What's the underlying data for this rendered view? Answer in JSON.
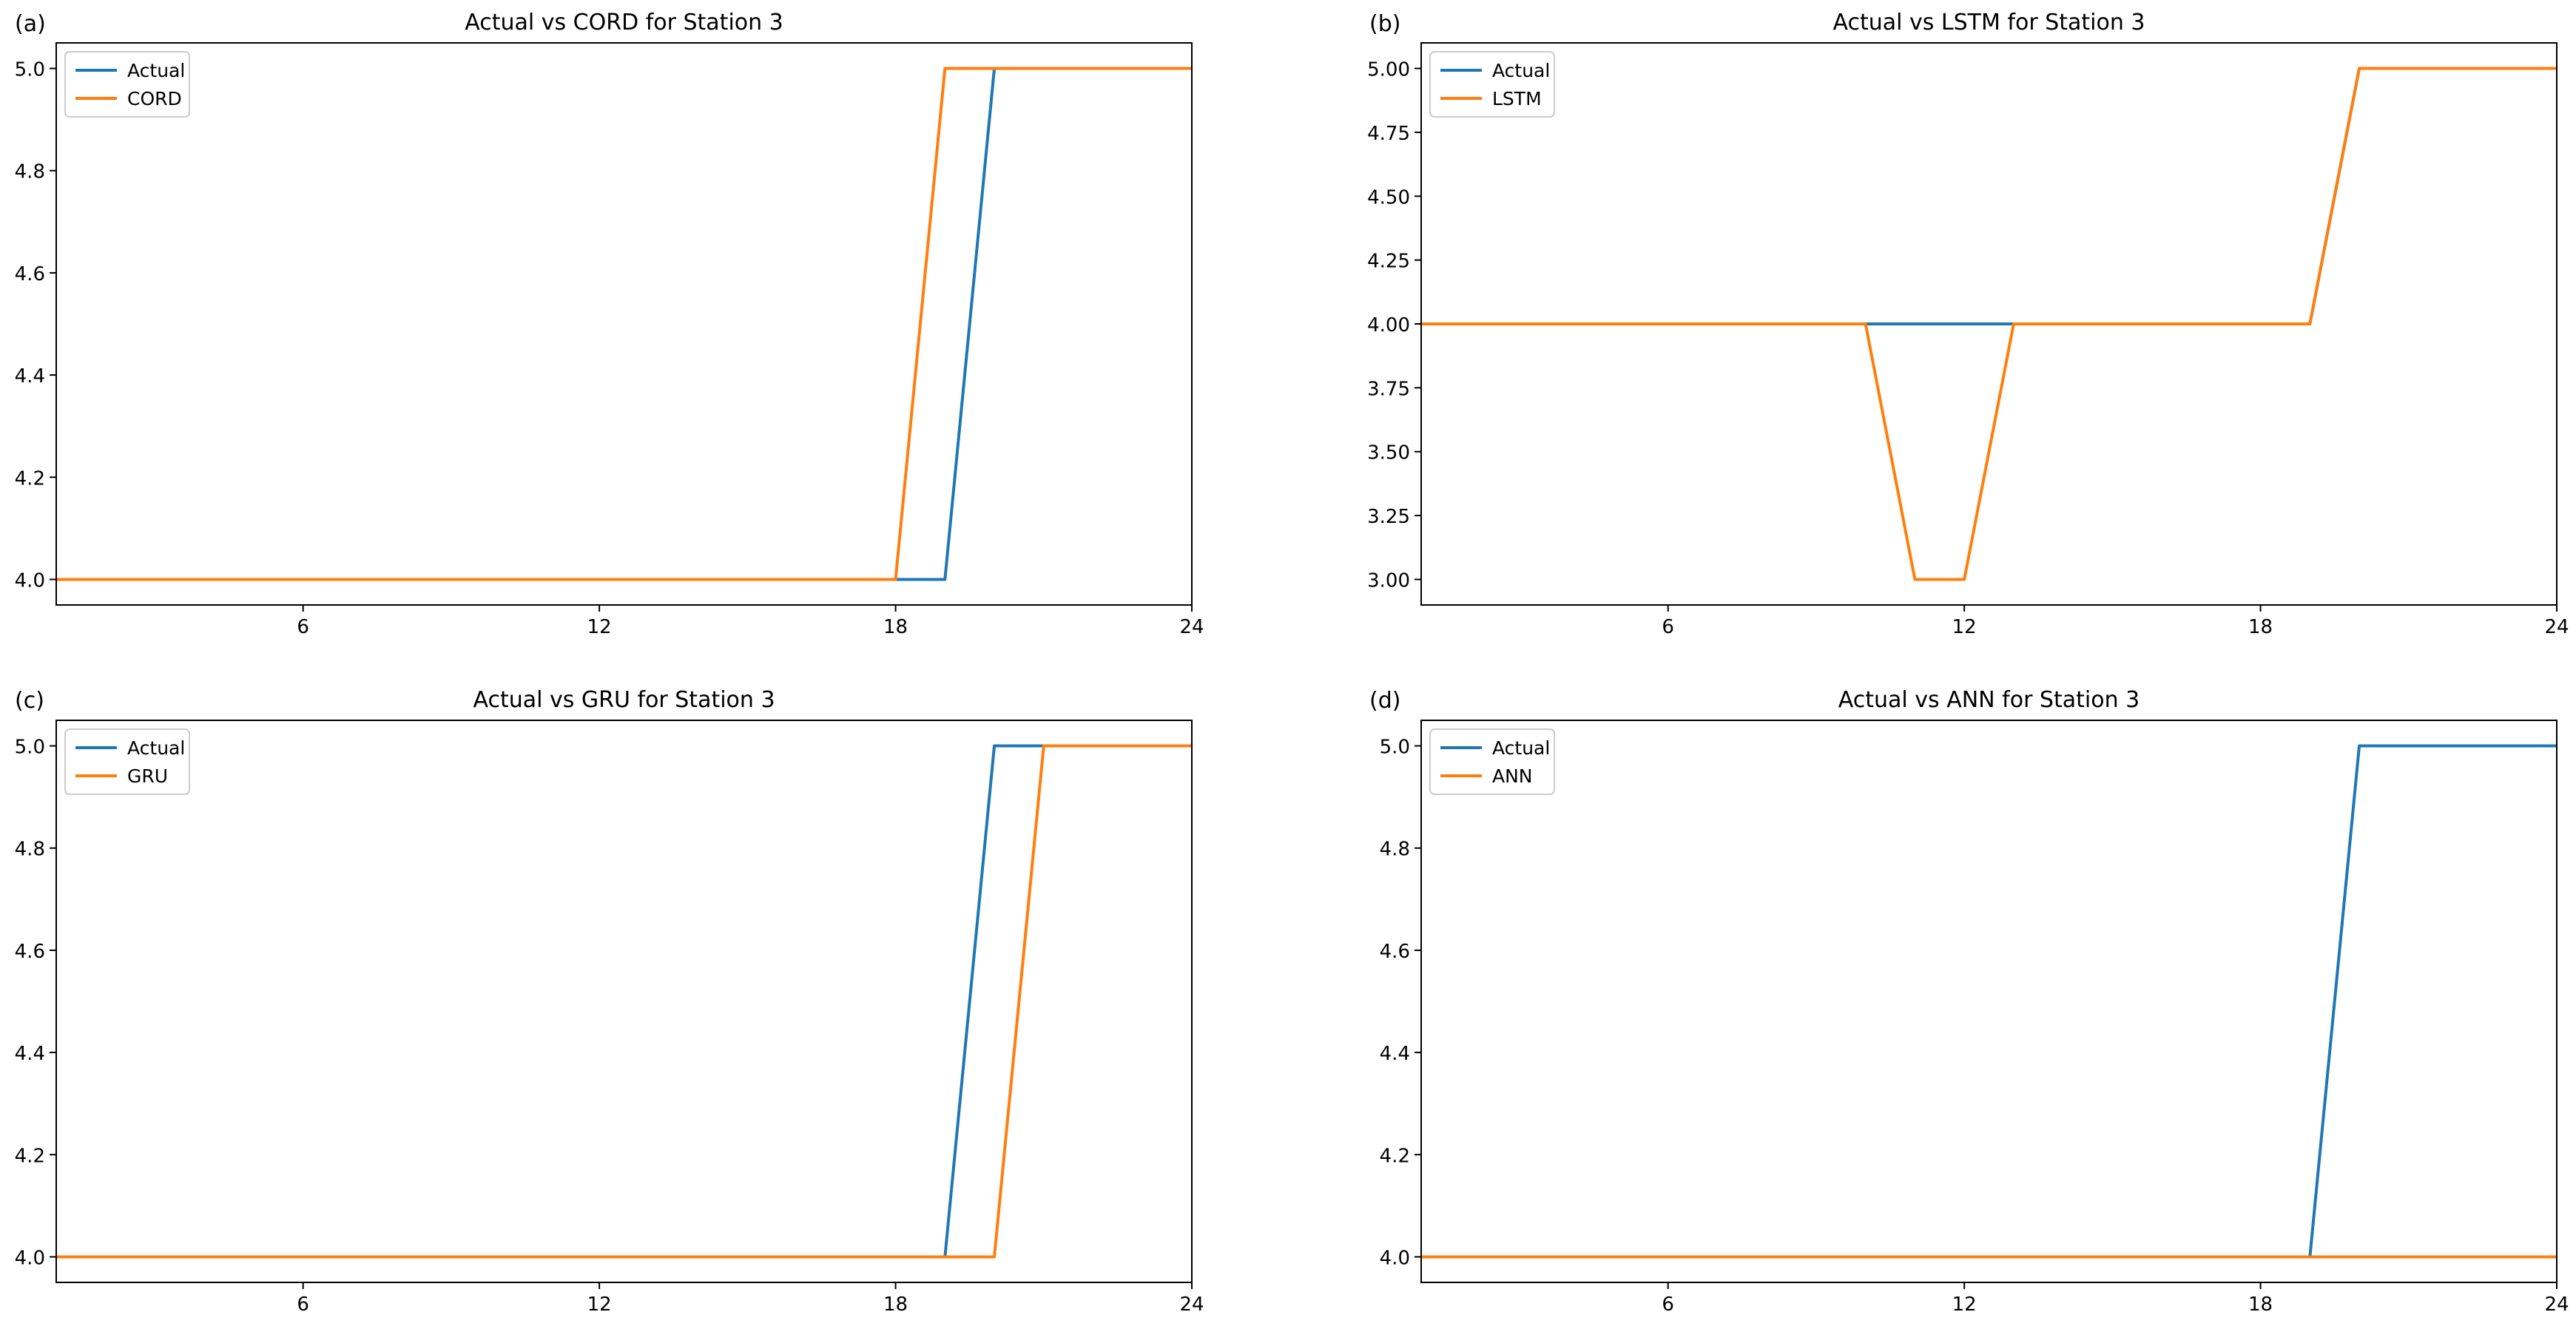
{
  "colors": {
    "actual": "#1f77b4",
    "model": "#ff7f0e",
    "axis": "#000000",
    "background": "#ffffff"
  },
  "chart_data": [
    {
      "panel": "(a)",
      "type": "line",
      "title": "Actual vs CORD for Station 3",
      "xlabel": "",
      "ylabel": "",
      "xlim": [
        1,
        24
      ],
      "ylim": [
        3.95,
        5.05
      ],
      "xticks": [
        6,
        12,
        18,
        24
      ],
      "yticks": [
        4.0,
        4.2,
        4.4,
        4.6,
        4.8,
        5.0
      ],
      "ytick_decimals": 1,
      "grid": false,
      "legend_position": "top-left",
      "x": [
        1,
        2,
        3,
        4,
        5,
        6,
        7,
        8,
        9,
        10,
        11,
        12,
        13,
        14,
        15,
        16,
        17,
        18,
        19,
        20,
        21,
        22,
        23,
        24
      ],
      "series": [
        {
          "name": "Actual",
          "color": "#1f77b4",
          "values": [
            4,
            4,
            4,
            4,
            4,
            4,
            4,
            4,
            4,
            4,
            4,
            4,
            4,
            4,
            4,
            4,
            4,
            4,
            4,
            5,
            5,
            5,
            5,
            5
          ]
        },
        {
          "name": "CORD",
          "color": "#ff7f0e",
          "values": [
            4,
            4,
            4,
            4,
            4,
            4,
            4,
            4,
            4,
            4,
            4,
            4,
            4,
            4,
            4,
            4,
            4,
            4,
            5,
            5,
            5,
            5,
            5,
            5
          ]
        }
      ]
    },
    {
      "panel": "(b)",
      "type": "line",
      "title": "Actual vs LSTM for Station 3",
      "xlabel": "",
      "ylabel": "",
      "xlim": [
        1,
        24
      ],
      "ylim": [
        2.9,
        5.1
      ],
      "xticks": [
        6,
        12,
        18,
        24
      ],
      "yticks": [
        3.0,
        3.25,
        3.5,
        3.75,
        4.0,
        4.25,
        4.5,
        4.75,
        5.0
      ],
      "ytick_decimals": 2,
      "grid": false,
      "legend_position": "top-left",
      "x": [
        1,
        2,
        3,
        4,
        5,
        6,
        7,
        8,
        9,
        10,
        11,
        12,
        13,
        14,
        15,
        16,
        17,
        18,
        19,
        20,
        21,
        22,
        23,
        24
      ],
      "series": [
        {
          "name": "Actual",
          "color": "#1f77b4",
          "values": [
            4,
            4,
            4,
            4,
            4,
            4,
            4,
            4,
            4,
            4,
            4,
            4,
            4,
            4,
            4,
            4,
            4,
            4,
            4,
            5,
            5,
            5,
            5,
            5
          ]
        },
        {
          "name": "LSTM",
          "color": "#ff7f0e",
          "values": [
            4,
            4,
            4,
            4,
            4,
            4,
            4,
            4,
            4,
            4,
            3,
            3,
            4,
            4,
            4,
            4,
            4,
            4,
            4,
            5,
            5,
            5,
            5,
            5
          ]
        }
      ]
    },
    {
      "panel": "(c)",
      "type": "line",
      "title": "Actual vs GRU for Station 3",
      "xlabel": "",
      "ylabel": "",
      "xlim": [
        1,
        24
      ],
      "ylim": [
        3.95,
        5.05
      ],
      "xticks": [
        6,
        12,
        18,
        24
      ],
      "yticks": [
        4.0,
        4.2,
        4.4,
        4.6,
        4.8,
        5.0
      ],
      "ytick_decimals": 1,
      "grid": false,
      "legend_position": "top-left",
      "x": [
        1,
        2,
        3,
        4,
        5,
        6,
        7,
        8,
        9,
        10,
        11,
        12,
        13,
        14,
        15,
        16,
        17,
        18,
        19,
        20,
        21,
        22,
        23,
        24
      ],
      "series": [
        {
          "name": "Actual",
          "color": "#1f77b4",
          "values": [
            4,
            4,
            4,
            4,
            4,
            4,
            4,
            4,
            4,
            4,
            4,
            4,
            4,
            4,
            4,
            4,
            4,
            4,
            4,
            5,
            5,
            5,
            5,
            5
          ]
        },
        {
          "name": "GRU",
          "color": "#ff7f0e",
          "values": [
            4,
            4,
            4,
            4,
            4,
            4,
            4,
            4,
            4,
            4,
            4,
            4,
            4,
            4,
            4,
            4,
            4,
            4,
            4,
            4,
            5,
            5,
            5,
            5
          ]
        }
      ]
    },
    {
      "panel": "(d)",
      "type": "line",
      "title": "Actual vs ANN for Station 3",
      "xlabel": "",
      "ylabel": "",
      "xlim": [
        1,
        24
      ],
      "ylim": [
        3.95,
        5.05
      ],
      "xticks": [
        6,
        12,
        18,
        24
      ],
      "yticks": [
        4.0,
        4.2,
        4.4,
        4.6,
        4.8,
        5.0
      ],
      "ytick_decimals": 1,
      "grid": false,
      "legend_position": "top-left",
      "x": [
        1,
        2,
        3,
        4,
        5,
        6,
        7,
        8,
        9,
        10,
        11,
        12,
        13,
        14,
        15,
        16,
        17,
        18,
        19,
        20,
        21,
        22,
        23,
        24
      ],
      "series": [
        {
          "name": "Actual",
          "color": "#1f77b4",
          "values": [
            4,
            4,
            4,
            4,
            4,
            4,
            4,
            4,
            4,
            4,
            4,
            4,
            4,
            4,
            4,
            4,
            4,
            4,
            4,
            5,
            5,
            5,
            5,
            5
          ]
        },
        {
          "name": "ANN",
          "color": "#ff7f0e",
          "values": [
            4,
            4,
            4,
            4,
            4,
            4,
            4,
            4,
            4,
            4,
            4,
            4,
            4,
            4,
            4,
            4,
            4,
            4,
            4,
            4,
            4,
            4,
            4,
            4
          ]
        }
      ]
    }
  ]
}
